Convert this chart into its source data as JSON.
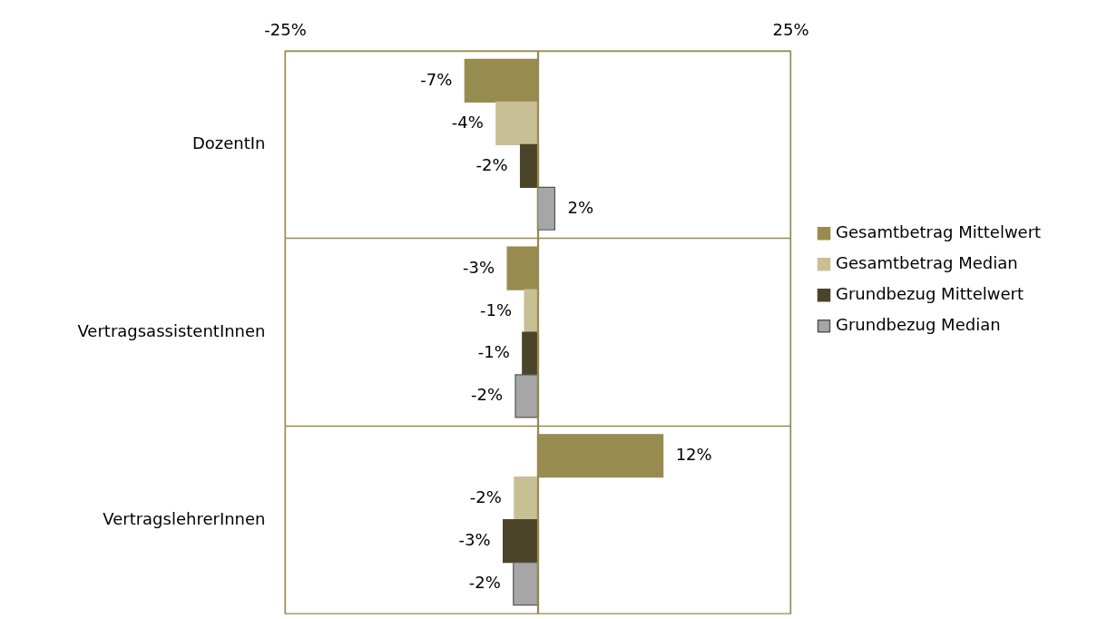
{
  "chart_data": {
    "type": "bar",
    "orientation": "horizontal",
    "categories": [
      "DozentIn",
      "VertragsassistentInnen",
      "VertragslehrerInnen"
    ],
    "series": [
      {
        "name": "Gesamtbetrag Mittelwert",
        "color": "#978b50",
        "values": [
          -7.2,
          -3.0,
          12.4
        ],
        "value_labels": [
          "-7%",
          "-3%",
          "12%"
        ]
      },
      {
        "name": "Gesamtbetrag Median",
        "color": "#c9bf95",
        "values": [
          -4.1,
          -1.3,
          -2.3
        ],
        "value_labels": [
          "-4%",
          "-1%",
          "-2%"
        ]
      },
      {
        "name": "Grundbezug Mittelwert",
        "color": "#4b4429",
        "values": [
          -1.7,
          -1.5,
          -3.4
        ],
        "value_labels": [
          "-2%",
          "-1%",
          "-3%"
        ]
      },
      {
        "name": "Grundbezug Median",
        "color": "#a6a6a6",
        "values": [
          1.7,
          -2.2,
          -2.4
        ],
        "value_labels": [
          "2%",
          "-2%",
          "-2%"
        ]
      }
    ],
    "xlim": [
      -25,
      25
    ],
    "xticks": [
      {
        "value": -25,
        "label": "-25%"
      },
      {
        "value": 0,
        "label": null
      },
      {
        "value": 25,
        "label": "25%"
      }
    ],
    "grid": true,
    "legend": "right"
  }
}
